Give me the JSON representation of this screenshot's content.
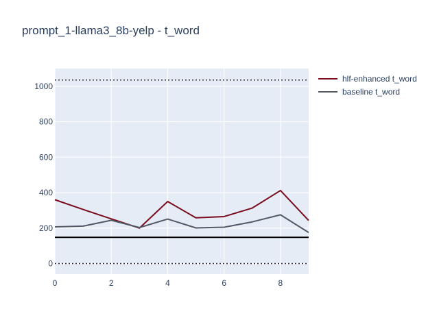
{
  "chart_data": {
    "type": "line",
    "title": "prompt_1-llama3_8b-yelp - t_word",
    "xlabel": "",
    "ylabel": "",
    "xlim": [
      0,
      9
    ],
    "ylim": [
      -60,
      1100
    ],
    "x_ticks": [
      0,
      2,
      4,
      6,
      8
    ],
    "y_ticks": [
      0,
      200,
      400,
      600,
      800,
      1000
    ],
    "x": [
      0,
      1,
      2,
      3,
      4,
      5,
      6,
      7,
      8,
      9
    ],
    "series": [
      {
        "name": "hlf-enhanced t_word",
        "color": "#7a0b1c",
        "values": [
          360,
          305,
          252,
          200,
          350,
          258,
          265,
          313,
          412,
          243
        ]
      },
      {
        "name": "baseline t_word",
        "color": "#525a66",
        "values": [
          207,
          211,
          244,
          203,
          251,
          201,
          205,
          235,
          275,
          175
        ]
      }
    ],
    "reference_lines": [
      {
        "y": 1035,
        "style": "dotted",
        "color": "#2b2b3a"
      },
      {
        "y": 148,
        "style": "solid",
        "color": "#000000"
      },
      {
        "y": 0,
        "style": "dotted",
        "color": "#2b2b3a"
      }
    ],
    "legend_position": "top-right outside",
    "grid": true,
    "plot_background": "#e5ecf6"
  }
}
